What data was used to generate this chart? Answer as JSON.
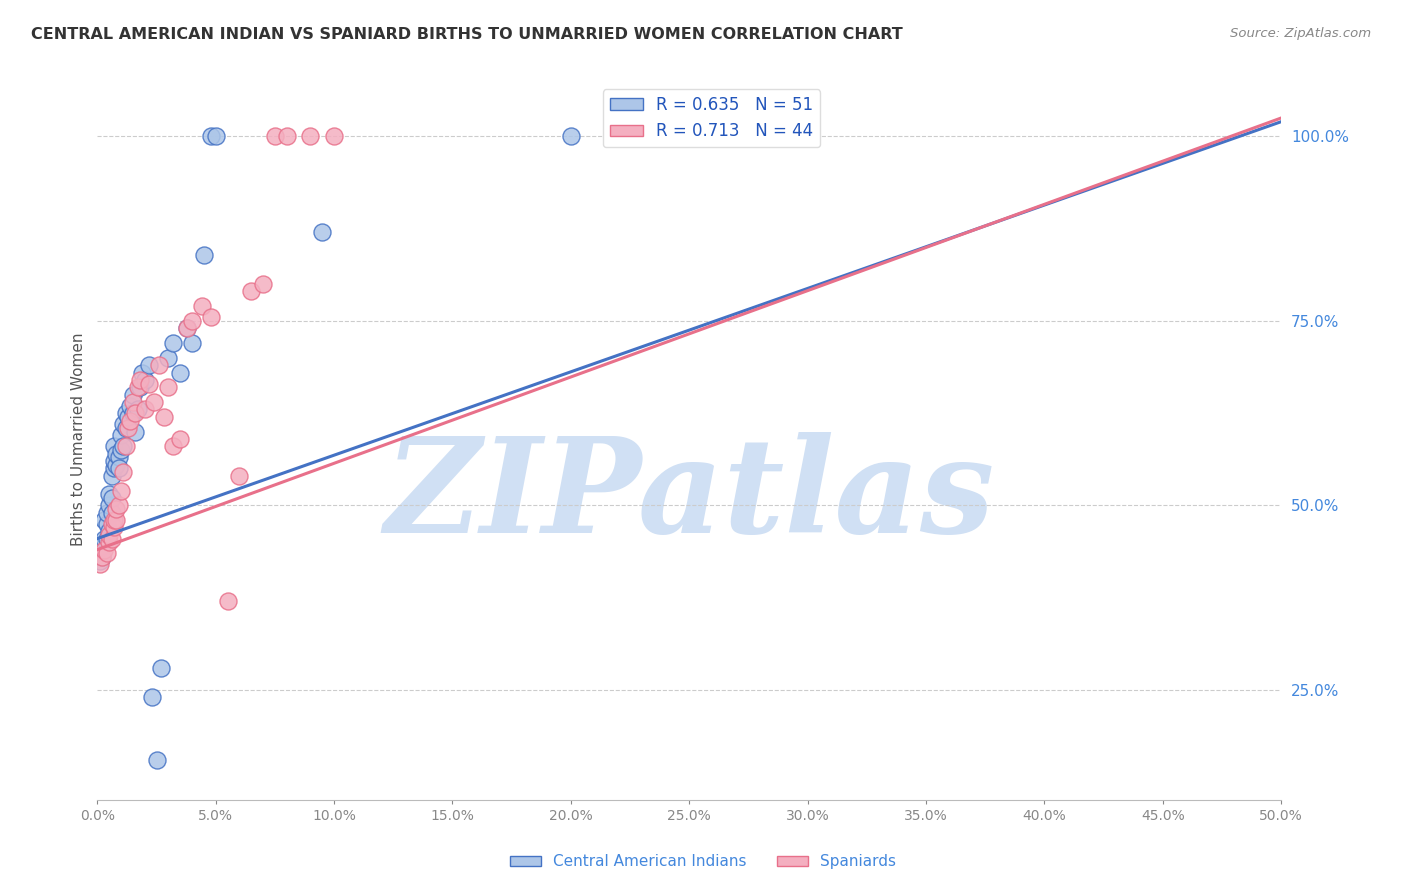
{
  "title": "CENTRAL AMERICAN INDIAN VS SPANIARD BIRTHS TO UNMARRIED WOMEN CORRELATION CHART",
  "source": "Source: ZipAtlas.com",
  "ylabel": "Births to Unmarried Women",
  "ytick_labels": [
    "25.0%",
    "50.0%",
    "75.0%",
    "100.0%"
  ],
  "ytick_vals": [
    0.25,
    0.5,
    0.75,
    1.0
  ],
  "xmin": 0.0,
  "xmax": 0.5,
  "ymin": 0.1,
  "ymax": 1.08,
  "legend_label_blue": "Central American Indians",
  "legend_label_pink": "Spaniards",
  "R_blue": 0.635,
  "N_blue": 51,
  "R_pink": 0.713,
  "N_pink": 44,
  "color_blue": "#adc6e8",
  "color_pink": "#f4afc0",
  "color_blue_line": "#4472c4",
  "color_pink_line": "#e8708a",
  "watermark_color": "#d0e0f4",
  "blue_x": [
    0.001,
    0.002,
    0.002,
    0.003,
    0.003,
    0.004,
    0.004,
    0.004,
    0.005,
    0.005,
    0.005,
    0.006,
    0.006,
    0.006,
    0.007,
    0.007,
    0.007,
    0.008,
    0.008,
    0.009,
    0.009,
    0.01,
    0.01,
    0.011,
    0.011,
    0.012,
    0.012,
    0.013,
    0.014,
    0.015,
    0.015,
    0.016,
    0.017,
    0.018,
    0.019,
    0.02,
    0.022,
    0.023,
    0.025,
    0.027,
    0.03,
    0.032,
    0.035,
    0.038,
    0.04,
    0.045,
    0.048,
    0.05,
    0.095,
    0.2,
    0.23
  ],
  "blue_y": [
    0.425,
    0.43,
    0.445,
    0.455,
    0.48,
    0.455,
    0.475,
    0.49,
    0.465,
    0.5,
    0.515,
    0.49,
    0.51,
    0.54,
    0.55,
    0.56,
    0.58,
    0.555,
    0.57,
    0.565,
    0.55,
    0.575,
    0.595,
    0.58,
    0.61,
    0.605,
    0.625,
    0.62,
    0.635,
    0.625,
    0.65,
    0.6,
    0.63,
    0.66,
    0.68,
    0.67,
    0.69,
    0.24,
    0.155,
    0.28,
    0.7,
    0.72,
    0.68,
    0.74,
    0.72,
    0.84,
    1.0,
    1.0,
    0.87,
    1.0,
    1.0
  ],
  "pink_x": [
    0.001,
    0.002,
    0.003,
    0.004,
    0.005,
    0.005,
    0.006,
    0.006,
    0.007,
    0.007,
    0.008,
    0.008,
    0.009,
    0.01,
    0.011,
    0.012,
    0.013,
    0.014,
    0.015,
    0.016,
    0.017,
    0.018,
    0.02,
    0.022,
    0.024,
    0.026,
    0.028,
    0.03,
    0.032,
    0.035,
    0.038,
    0.04,
    0.044,
    0.048,
    0.055,
    0.06,
    0.065,
    0.07,
    0.075,
    0.08,
    0.09,
    0.1,
    0.23,
    0.26
  ],
  "pink_y": [
    0.42,
    0.43,
    0.44,
    0.435,
    0.45,
    0.46,
    0.455,
    0.475,
    0.47,
    0.48,
    0.48,
    0.495,
    0.5,
    0.52,
    0.545,
    0.58,
    0.605,
    0.615,
    0.64,
    0.625,
    0.66,
    0.67,
    0.63,
    0.665,
    0.64,
    0.69,
    0.62,
    0.66,
    0.58,
    0.59,
    0.74,
    0.75,
    0.77,
    0.755,
    0.37,
    0.54,
    0.79,
    0.8,
    1.0,
    1.0,
    1.0,
    1.0,
    1.0,
    1.0
  ],
  "blue_line_x0": 0.0,
  "blue_line_y0": 0.455,
  "blue_line_x1": 0.5,
  "blue_line_y1": 1.02,
  "pink_line_x0": 0.0,
  "pink_line_y0": 0.44,
  "pink_line_x1": 0.5,
  "pink_line_y1": 1.025
}
